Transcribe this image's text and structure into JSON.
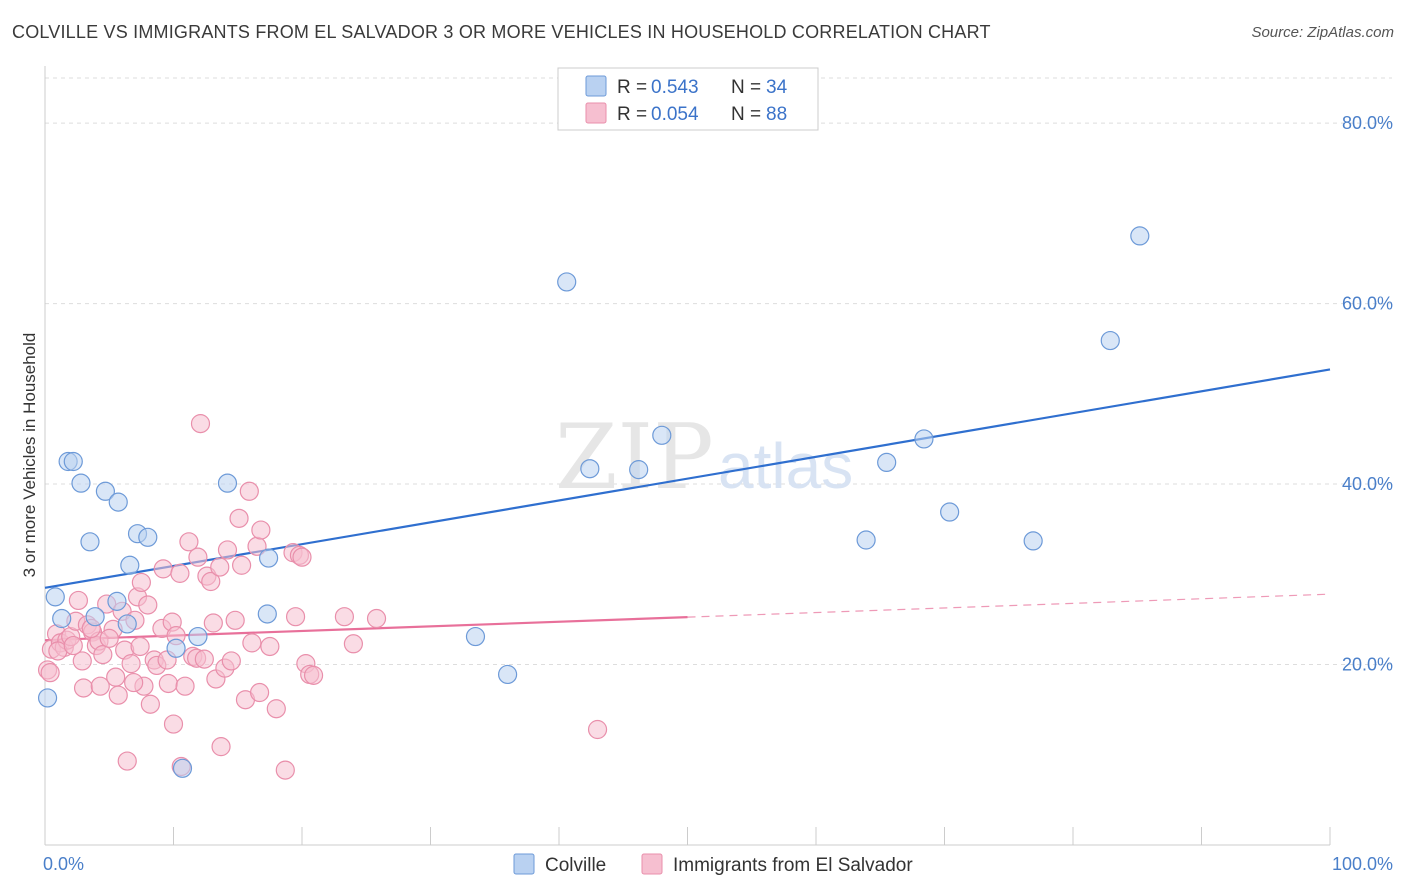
{
  "title": "COLVILLE VS IMMIGRANTS FROM EL SALVADOR 3 OR MORE VEHICLES IN HOUSEHOLD CORRELATION CHART",
  "source": "Source: ZipAtlas.com",
  "watermark": {
    "zip": "ZIP",
    "atlas": "atlas"
  },
  "colors": {
    "blue_fill": "#b9d1f1",
    "blue_stroke": "#6d9ad8",
    "blue_line": "#2f6fcf",
    "pink_fill": "#f6bfd0",
    "pink_stroke": "#e98fab",
    "pink_line": "#e8709a",
    "grid": "#dddddd",
    "axis_text": "#4a7fc9"
  },
  "legend": {
    "r_label": "R =",
    "n_label": "N =",
    "series": [
      {
        "r": "0.543",
        "n": "34"
      },
      {
        "r": "0.054",
        "n": "88"
      }
    ]
  },
  "chart_data": {
    "type": "scatter",
    "title": "COLVILLE VS IMMIGRANTS FROM EL SALVADOR 3 OR MORE VEHICLES IN HOUSEHOLD CORRELATION CHART",
    "xlabel": "",
    "ylabel": "3 or more Vehicles in Household",
    "xlim": [
      0,
      100
    ],
    "ylim": [
      0,
      85
    ],
    "x_tick_labels": [
      "0.0%",
      "100.0%"
    ],
    "y_ticks": [
      20,
      40,
      60,
      80
    ],
    "y_tick_labels": [
      "20.0%",
      "40.0%",
      "60.0%",
      "80.0%"
    ],
    "grid": true,
    "legend_position": "top-center",
    "series": [
      {
        "name": "Colville",
        "trend": {
          "x": [
            0,
            100
          ],
          "y": [
            28.5,
            52.7
          ],
          "dashed_from": null
        },
        "points": [
          {
            "x": 0.2,
            "y": 16.3
          },
          {
            "x": 0.8,
            "y": 27.5
          },
          {
            "x": 1.3,
            "y": 25.1
          },
          {
            "x": 1.8,
            "y": 42.5
          },
          {
            "x": 2.2,
            "y": 42.5
          },
          {
            "x": 2.8,
            "y": 40.1
          },
          {
            "x": 3.5,
            "y": 33.6
          },
          {
            "x": 3.9,
            "y": 25.3
          },
          {
            "x": 4.7,
            "y": 39.2
          },
          {
            "x": 5.7,
            "y": 38.0
          },
          {
            "x": 5.6,
            "y": 27.0
          },
          {
            "x": 6.4,
            "y": 24.5
          },
          {
            "x": 6.6,
            "y": 31.0
          },
          {
            "x": 7.2,
            "y": 34.5
          },
          {
            "x": 8.0,
            "y": 34.1
          },
          {
            "x": 10.2,
            "y": 21.8
          },
          {
            "x": 10.7,
            "y": 8.5
          },
          {
            "x": 11.9,
            "y": 23.1
          },
          {
            "x": 14.2,
            "y": 40.1
          },
          {
            "x": 17.3,
            "y": 25.6
          },
          {
            "x": 17.4,
            "y": 31.8
          },
          {
            "x": 33.5,
            "y": 23.1
          },
          {
            "x": 36.0,
            "y": 18.9
          },
          {
            "x": 40.6,
            "y": 62.4
          },
          {
            "x": 42.4,
            "y": 41.7
          },
          {
            "x": 46.2,
            "y": 41.6
          },
          {
            "x": 48.0,
            "y": 45.4
          },
          {
            "x": 63.9,
            "y": 33.8
          },
          {
            "x": 65.5,
            "y": 42.4
          },
          {
            "x": 68.4,
            "y": 45.0
          },
          {
            "x": 70.4,
            "y": 36.9
          },
          {
            "x": 76.9,
            "y": 33.7
          },
          {
            "x": 82.9,
            "y": 55.9
          },
          {
            "x": 85.2,
            "y": 67.5
          }
        ]
      },
      {
        "name": "Immigrants from El Salvador",
        "trend": {
          "x": [
            0,
            100
          ],
          "y": [
            22.7,
            27.8
          ],
          "dashed_from": 50
        },
        "points": [
          {
            "x": 0.2,
            "y": 19.4
          },
          {
            "x": 0.5,
            "y": 21.7
          },
          {
            "x": 0.9,
            "y": 23.4
          },
          {
            "x": 1.2,
            "y": 22.4
          },
          {
            "x": 1.5,
            "y": 21.9
          },
          {
            "x": 1.7,
            "y": 22.7
          },
          {
            "x": 2.0,
            "y": 23.1
          },
          {
            "x": 2.4,
            "y": 24.8
          },
          {
            "x": 2.6,
            "y": 27.1
          },
          {
            "x": 2.9,
            "y": 20.4
          },
          {
            "x": 3.0,
            "y": 17.4
          },
          {
            "x": 3.3,
            "y": 24.4
          },
          {
            "x": 3.7,
            "y": 23.6
          },
          {
            "x": 4.0,
            "y": 22.1
          },
          {
            "x": 4.2,
            "y": 22.6
          },
          {
            "x": 4.3,
            "y": 17.6
          },
          {
            "x": 4.5,
            "y": 21.1
          },
          {
            "x": 4.8,
            "y": 26.7
          },
          {
            "x": 5.3,
            "y": 23.9
          },
          {
            "x": 5.5,
            "y": 18.6
          },
          {
            "x": 5.7,
            "y": 16.6
          },
          {
            "x": 6.0,
            "y": 25.9
          },
          {
            "x": 6.2,
            "y": 21.6
          },
          {
            "x": 6.4,
            "y": 9.3
          },
          {
            "x": 6.7,
            "y": 20.1
          },
          {
            "x": 7.0,
            "y": 24.9
          },
          {
            "x": 7.2,
            "y": 27.5
          },
          {
            "x": 7.4,
            "y": 22.0
          },
          {
            "x": 7.5,
            "y": 29.1
          },
          {
            "x": 7.7,
            "y": 17.6
          },
          {
            "x": 8.0,
            "y": 26.6
          },
          {
            "x": 8.2,
            "y": 15.6
          },
          {
            "x": 8.5,
            "y": 20.5
          },
          {
            "x": 8.7,
            "y": 19.9
          },
          {
            "x": 9.1,
            "y": 24.0
          },
          {
            "x": 9.2,
            "y": 30.6
          },
          {
            "x": 9.5,
            "y": 20.5
          },
          {
            "x": 9.6,
            "y": 17.9
          },
          {
            "x": 9.9,
            "y": 24.7
          },
          {
            "x": 10.0,
            "y": 13.4
          },
          {
            "x": 10.2,
            "y": 23.2
          },
          {
            "x": 10.5,
            "y": 30.1
          },
          {
            "x": 10.6,
            "y": 8.7
          },
          {
            "x": 10.9,
            "y": 17.6
          },
          {
            "x": 11.2,
            "y": 33.6
          },
          {
            "x": 11.5,
            "y": 20.9
          },
          {
            "x": 11.8,
            "y": 20.7
          },
          {
            "x": 11.9,
            "y": 31.9
          },
          {
            "x": 12.1,
            "y": 46.7
          },
          {
            "x": 12.4,
            "y": 20.6
          },
          {
            "x": 12.6,
            "y": 29.8
          },
          {
            "x": 12.9,
            "y": 29.2
          },
          {
            "x": 13.1,
            "y": 24.6
          },
          {
            "x": 13.3,
            "y": 18.4
          },
          {
            "x": 13.6,
            "y": 30.8
          },
          {
            "x": 13.7,
            "y": 10.9
          },
          {
            "x": 14.0,
            "y": 19.6
          },
          {
            "x": 14.2,
            "y": 32.7
          },
          {
            "x": 14.5,
            "y": 20.4
          },
          {
            "x": 14.8,
            "y": 24.9
          },
          {
            "x": 15.1,
            "y": 36.2
          },
          {
            "x": 15.3,
            "y": 31.0
          },
          {
            "x": 15.6,
            "y": 16.1
          },
          {
            "x": 15.9,
            "y": 39.2
          },
          {
            "x": 16.1,
            "y": 22.4
          },
          {
            "x": 16.5,
            "y": 33.1
          },
          {
            "x": 16.7,
            "y": 16.9
          },
          {
            "x": 16.8,
            "y": 34.9
          },
          {
            "x": 17.5,
            "y": 22.0
          },
          {
            "x": 18.0,
            "y": 15.1
          },
          {
            "x": 18.7,
            "y": 8.3
          },
          {
            "x": 19.3,
            "y": 32.4
          },
          {
            "x": 19.5,
            "y": 25.3
          },
          {
            "x": 19.8,
            "y": 32.1
          },
          {
            "x": 20.0,
            "y": 31.9
          },
          {
            "x": 20.3,
            "y": 20.1
          },
          {
            "x": 20.6,
            "y": 18.9
          },
          {
            "x": 20.9,
            "y": 18.8
          },
          {
            "x": 23.3,
            "y": 25.3
          },
          {
            "x": 24.0,
            "y": 22.3
          },
          {
            "x": 25.8,
            "y": 25.1
          },
          {
            "x": 43.0,
            "y": 12.8
          },
          {
            "x": 0.4,
            "y": 19.1
          },
          {
            "x": 1.0,
            "y": 21.5
          },
          {
            "x": 2.2,
            "y": 22.1
          },
          {
            "x": 3.6,
            "y": 24.0
          },
          {
            "x": 5.0,
            "y": 22.9
          },
          {
            "x": 6.9,
            "y": 18.0
          }
        ]
      }
    ]
  },
  "bottom_legend": [
    {
      "label": "Colville"
    },
    {
      "label": "Immigrants from El Salvador"
    }
  ]
}
